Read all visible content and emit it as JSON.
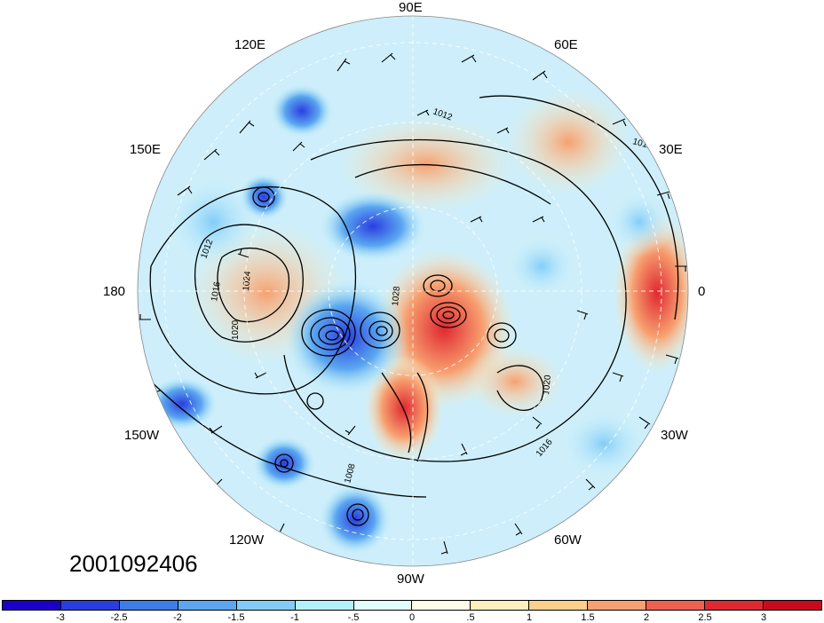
{
  "map": {
    "projection": "north-polar-stereographic",
    "field_description_shown": "shaded anomaly field with black isobar contours and wind barbs",
    "longitude_labels": {
      "top": "90E",
      "upper_left": "120E",
      "upper_right": "60E",
      "left_upper": "150E",
      "right_upper": "30E",
      "left": "180",
      "right": "0",
      "left_lower": "150W",
      "right_lower": "30W",
      "lower_left": "120W",
      "lower_right": "60W",
      "bottom": "90W"
    },
    "contour_labels": [
      "1012",
      "1016",
      "1020",
      "1024",
      "1028",
      "1008"
    ]
  },
  "timestamp": "2001092406",
  "colorbar": {
    "colors": [
      "#1a00c8",
      "#2a3ee0",
      "#3c7ee8",
      "#5aa6f0",
      "#82cdf8",
      "#b4f0fa",
      "#e2fcfc",
      "#fffde8",
      "#fff0c0",
      "#fbd08a",
      "#f7a070",
      "#f06050",
      "#e02830",
      "#c80a1e"
    ],
    "labels": [
      "-3",
      "-2.5",
      "-2",
      "-1.5",
      "-1",
      "-.5",
      "0",
      ".5",
      "1",
      "1.5",
      "2",
      "2.5",
      "3"
    ]
  }
}
